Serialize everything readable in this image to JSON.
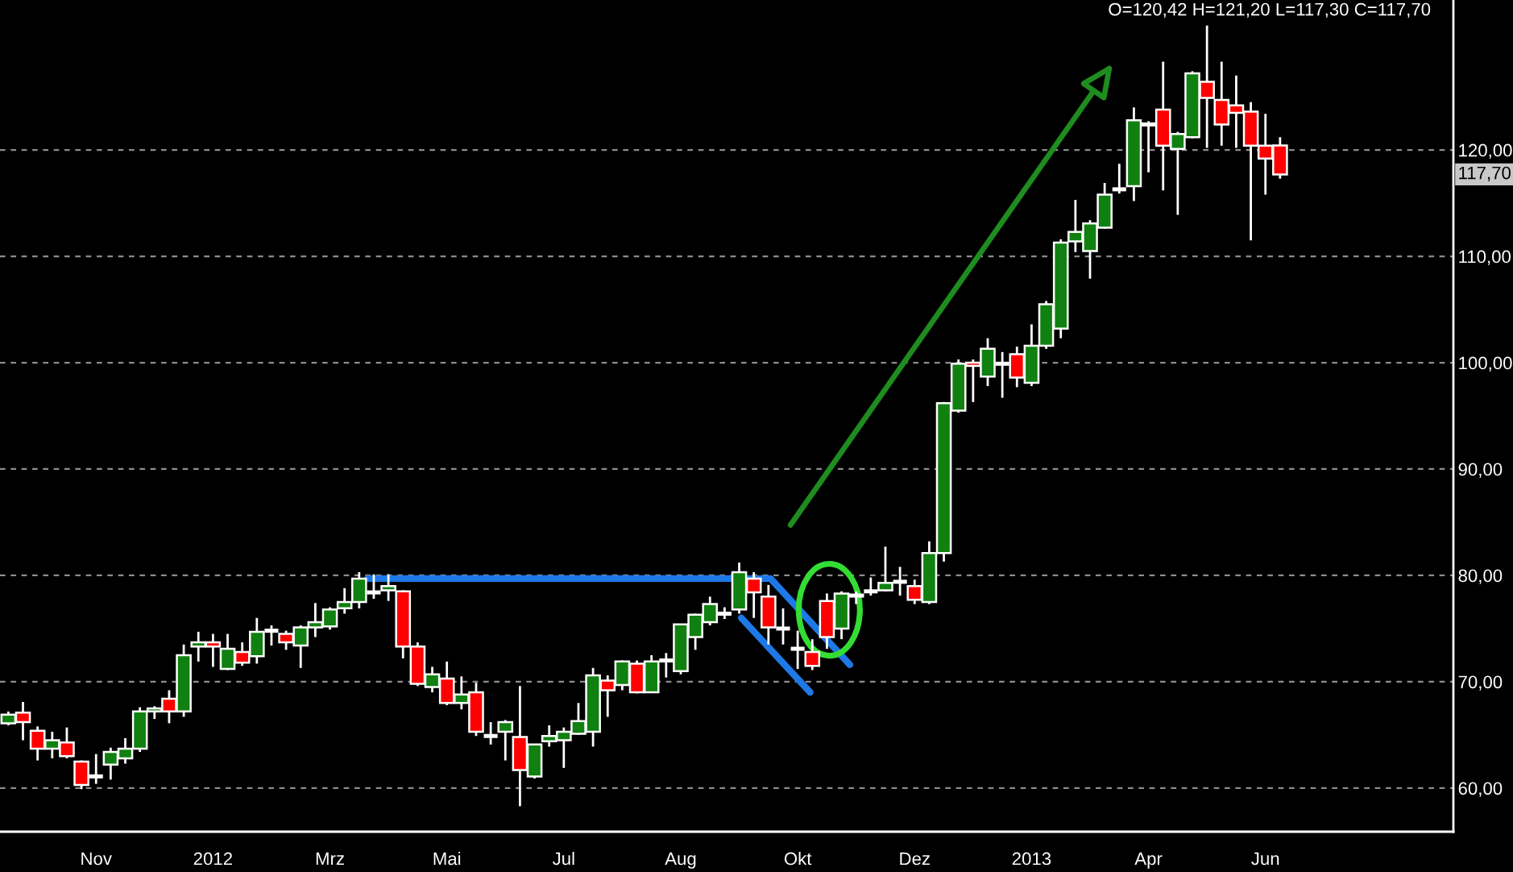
{
  "chart_data": {
    "type": "candlestick",
    "title": "O=120,42 H=121,20 L=117,30 C=117,70",
    "x": [
      "2011-10-10",
      "2011-10-17",
      "2011-10-24",
      "2011-10-31",
      "2011-11-07",
      "2011-11-14",
      "2011-11-21",
      "2011-11-28",
      "2011-12-05",
      "2011-12-12",
      "2011-12-19",
      "2011-12-26",
      "2012-01-02",
      "2012-01-09",
      "2012-01-16",
      "2012-01-23",
      "2012-01-30",
      "2012-02-06",
      "2012-02-13",
      "2012-02-20",
      "2012-02-27",
      "2012-03-05",
      "2012-03-12",
      "2012-03-19",
      "2012-03-26",
      "2012-04-02",
      "2012-04-09",
      "2012-04-16",
      "2012-04-23",
      "2012-04-30",
      "2012-05-07",
      "2012-05-14",
      "2012-05-21",
      "2012-05-28",
      "2012-06-04",
      "2012-06-11",
      "2012-06-18",
      "2012-06-25",
      "2012-07-02",
      "2012-07-09",
      "2012-07-16",
      "2012-07-23",
      "2012-07-30",
      "2012-08-06",
      "2012-08-13",
      "2012-08-20",
      "2012-08-27",
      "2012-09-03",
      "2012-09-10",
      "2012-09-17",
      "2012-09-24",
      "2012-10-01",
      "2012-10-08",
      "2012-10-15",
      "2012-10-22",
      "2012-10-29",
      "2012-11-05",
      "2012-11-12",
      "2012-11-19",
      "2012-11-26",
      "2012-12-03",
      "2012-12-10",
      "2012-12-17",
      "2012-12-24",
      "2012-12-31",
      "2013-01-07",
      "2013-01-14",
      "2013-01-21",
      "2013-01-28",
      "2013-02-04",
      "2013-02-11",
      "2013-02-18",
      "2013-02-25",
      "2013-03-04",
      "2013-03-11",
      "2013-03-18",
      "2013-03-25",
      "2013-04-01",
      "2013-04-08",
      "2013-04-15",
      "2013-04-22",
      "2013-04-29",
      "2013-05-06",
      "2013-05-13",
      "2013-05-20",
      "2013-05-27",
      "2013-06-03",
      "2013-06-10"
    ],
    "ohlc": [
      [
        66.1,
        67.2,
        65.9,
        66.9
      ],
      [
        67.1,
        68.1,
        64.5,
        66.2
      ],
      [
        65.4,
        65.8,
        62.6,
        63.7
      ],
      [
        63.7,
        65.3,
        62.8,
        64.5
      ],
      [
        64.3,
        65.7,
        62.8,
        63.0
      ],
      [
        62.5,
        62.6,
        59.9,
        60.3
      ],
      [
        61.1,
        63.2,
        60.4,
        61.1
      ],
      [
        62.2,
        63.8,
        60.8,
        63.4
      ],
      [
        62.8,
        64.7,
        62.3,
        63.7
      ],
      [
        63.7,
        67.6,
        63.4,
        67.2
      ],
      [
        67.2,
        67.7,
        66.5,
        67.5
      ],
      [
        68.4,
        69.2,
        66.1,
        67.2
      ],
      [
        67.2,
        73.5,
        66.7,
        72.5
      ],
      [
        73.3,
        74.7,
        71.9,
        73.7
      ],
      [
        73.7,
        74.5,
        71.4,
        73.3
      ],
      [
        71.2,
        74.5,
        71.1,
        73.1
      ],
      [
        72.8,
        73.7,
        71.5,
        71.8
      ],
      [
        72.4,
        76.0,
        71.7,
        74.7
      ],
      [
        74.8,
        75.3,
        73.4,
        74.8
      ],
      [
        74.5,
        74.8,
        73.0,
        73.7
      ],
      [
        73.4,
        75.3,
        71.3,
        75.1
      ],
      [
        75.1,
        77.4,
        74.2,
        75.6
      ],
      [
        75.2,
        77.0,
        74.9,
        76.8
      ],
      [
        76.9,
        78.8,
        76.4,
        77.5
      ],
      [
        77.5,
        80.3,
        76.9,
        79.7
      ],
      [
        78.4,
        80.1,
        77.8,
        78.4
      ],
      [
        78.6,
        80.1,
        77.6,
        79.0
      ],
      [
        78.5,
        78.6,
        72.2,
        73.3
      ],
      [
        73.3,
        73.7,
        69.6,
        69.8
      ],
      [
        69.5,
        71.4,
        69.0,
        70.7
      ],
      [
        70.3,
        71.9,
        67.8,
        68.0
      ],
      [
        68.0,
        70.5,
        67.4,
        68.8
      ],
      [
        69.0,
        69.9,
        64.9,
        65.3
      ],
      [
        64.9,
        66.2,
        64.1,
        64.9
      ],
      [
        65.3,
        66.4,
        62.6,
        66.2
      ],
      [
        64.8,
        69.6,
        58.3,
        61.7
      ],
      [
        61.1,
        64.1,
        60.9,
        64.1
      ],
      [
        64.4,
        65.9,
        63.9,
        64.9
      ],
      [
        64.5,
        65.7,
        61.9,
        65.3
      ],
      [
        65.1,
        68.0,
        65.0,
        66.3
      ],
      [
        65.3,
        71.3,
        63.9,
        70.6
      ],
      [
        70.1,
        70.6,
        66.7,
        69.2
      ],
      [
        69.7,
        72.0,
        69.2,
        71.9
      ],
      [
        71.7,
        72.0,
        68.9,
        69.0
      ],
      [
        69.0,
        72.5,
        69.0,
        71.9
      ],
      [
        72.0,
        72.7,
        70.4,
        72.0
      ],
      [
        71.0,
        75.4,
        70.7,
        75.4
      ],
      [
        74.2,
        76.4,
        73.0,
        76.3
      ],
      [
        75.6,
        78.0,
        75.3,
        77.3
      ],
      [
        76.4,
        77.0,
        75.9,
        76.4
      ],
      [
        76.8,
        81.2,
        76.4,
        80.3
      ],
      [
        79.7,
        80.3,
        76.0,
        78.4
      ],
      [
        78.0,
        79.1,
        73.5,
        75.1
      ],
      [
        75.0,
        76.9,
        73.5,
        75.0
      ],
      [
        73.1,
        74.8,
        71.2,
        73.1
      ],
      [
        72.8,
        74.0,
        71.1,
        71.5
      ],
      [
        77.6,
        78.3,
        73.1,
        74.2
      ],
      [
        75.0,
        78.5,
        74.0,
        78.3
      ],
      [
        78.0,
        78.5,
        77.3,
        78.2
      ],
      [
        78.5,
        79.8,
        78.1,
        78.5
      ],
      [
        78.6,
        82.7,
        78.5,
        79.3
      ],
      [
        79.4,
        80.8,
        78.1,
        79.4
      ],
      [
        79.0,
        79.6,
        77.3,
        77.7
      ],
      [
        77.5,
        83.2,
        77.3,
        82.1
      ],
      [
        82.1,
        96.3,
        81.3,
        96.2
      ],
      [
        95.5,
        100.3,
        95.3,
        99.9
      ],
      [
        100.0,
        100.3,
        96.3,
        99.7
      ],
      [
        98.7,
        102.3,
        97.8,
        101.3
      ],
      [
        99.9,
        101.0,
        96.7,
        99.9
      ],
      [
        100.8,
        101.5,
        97.7,
        98.6
      ],
      [
        98.1,
        103.6,
        97.8,
        101.6
      ],
      [
        101.6,
        105.8,
        101.3,
        105.5
      ],
      [
        103.2,
        111.6,
        102.3,
        111.3
      ],
      [
        111.4,
        115.3,
        110.4,
        112.3
      ],
      [
        110.5,
        113.4,
        107.9,
        113.1
      ],
      [
        112.7,
        116.9,
        112.6,
        115.8
      ],
      [
        116.3,
        118.7,
        115.9,
        116.3
      ],
      [
        116.6,
        124.0,
        115.2,
        122.8
      ],
      [
        122.4,
        122.7,
        117.9,
        122.4
      ],
      [
        123.8,
        128.3,
        116.2,
        120.4
      ],
      [
        120.1,
        121.7,
        113.9,
        121.5
      ],
      [
        121.2,
        127.4,
        121.1,
        127.2
      ],
      [
        126.4,
        131.7,
        120.2,
        124.9
      ],
      [
        124.7,
        128.3,
        120.4,
        122.4
      ],
      [
        124.2,
        127.0,
        120.2,
        123.5
      ],
      [
        123.6,
        124.5,
        111.5,
        120.4
      ],
      [
        120.4,
        123.4,
        115.8,
        119.2
      ],
      [
        120.42,
        121.2,
        117.3,
        117.7
      ]
    ],
    "colors": [
      "#108010",
      "#ff0000",
      "#ff0000",
      "#108010",
      "#ff0000",
      "#ff0000",
      "#ffffff",
      "#108010",
      "#108010",
      "#108010",
      "#108010",
      "#ff0000",
      "#108010",
      "#108010",
      "#ff0000",
      "#108010",
      "#ff0000",
      "#108010",
      "#ffffff",
      "#ff0000",
      "#108010",
      "#108010",
      "#108010",
      "#108010",
      "#108010",
      "#ffffff",
      "#108010",
      "#ff0000",
      "#ff0000",
      "#108010",
      "#ff0000",
      "#108010",
      "#ff0000",
      "#ffffff",
      "#108010",
      "#ff0000",
      "#108010",
      "#108010",
      "#108010",
      "#108010",
      "#108010",
      "#ff0000",
      "#108010",
      "#ff0000",
      "#108010",
      "#ffffff",
      "#108010",
      "#108010",
      "#108010",
      "#ffffff",
      "#108010",
      "#ff0000",
      "#ff0000",
      "#ffffff",
      "#ffffff",
      "#ff0000",
      "#ff0000",
      "#108010",
      "#108010",
      "#ffffff",
      "#108010",
      "#ffffff",
      "#ff0000",
      "#108010",
      "#108010",
      "#108010",
      "#ff0000",
      "#108010",
      "#ffffff",
      "#ff0000",
      "#108010",
      "#108010",
      "#108010",
      "#108010",
      "#108010",
      "#108010",
      "#ffffff",
      "#108010",
      "#ffffff",
      "#ff0000",
      "#108010",
      "#108010",
      "#ff0000",
      "#ff0000",
      "#ff0000",
      "#ff0000",
      "#ff0000",
      "#ff0000"
    ],
    "series": [
      {
        "type": "line",
        "color": "#1e78e6",
        "x": [
          "2012-03-30",
          "2012-10-09",
          "2012-11-16"
        ],
        "values": [
          79.7,
          79.7,
          71.6
        ]
      },
      {
        "type": "line",
        "color": "#1e78e6",
        "x": [
          "2012-09-25",
          "2012-10-28"
        ],
        "values": [
          76.0,
          69.0
        ]
      }
    ],
    "xlim": [
      "2011-10-06",
      "2013-09-01"
    ],
    "xticks": [
      {
        "value": "2011-11-21",
        "label": "Nov"
      },
      {
        "value": "2012-01-16",
        "label": "2012"
      },
      {
        "value": "2012-03-12",
        "label": "Mrz"
      },
      {
        "value": "2012-05-07",
        "label": "Mai"
      },
      {
        "value": "2012-07-02",
        "label": "Jul"
      },
      {
        "value": "2012-08-27",
        "label": "Aug"
      },
      {
        "value": "2012-10-22",
        "label": "Okt"
      },
      {
        "value": "2012-12-17",
        "label": "Dez"
      },
      {
        "value": "2013-02-11",
        "label": "2013"
      },
      {
        "value": "2013-04-08",
        "label": "Apr"
      },
      {
        "value": "2013-06-03",
        "label": "Jun"
      }
    ],
    "ylim": [
      55.9,
      134.1
    ],
    "yticks": [
      {
        "value": 60,
        "label": "60,00"
      },
      {
        "value": 70,
        "label": "70,00"
      },
      {
        "value": 80,
        "label": "80,00"
      },
      {
        "value": 90,
        "label": "90,00"
      },
      {
        "value": 100,
        "label": "100,00"
      },
      {
        "value": 110,
        "label": "110,00"
      },
      {
        "value": 120,
        "label": "120,00"
      }
    ],
    "grid": "y",
    "annotations": [
      {
        "text": "117,70",
        "y": 117.7
      }
    ]
  }
}
